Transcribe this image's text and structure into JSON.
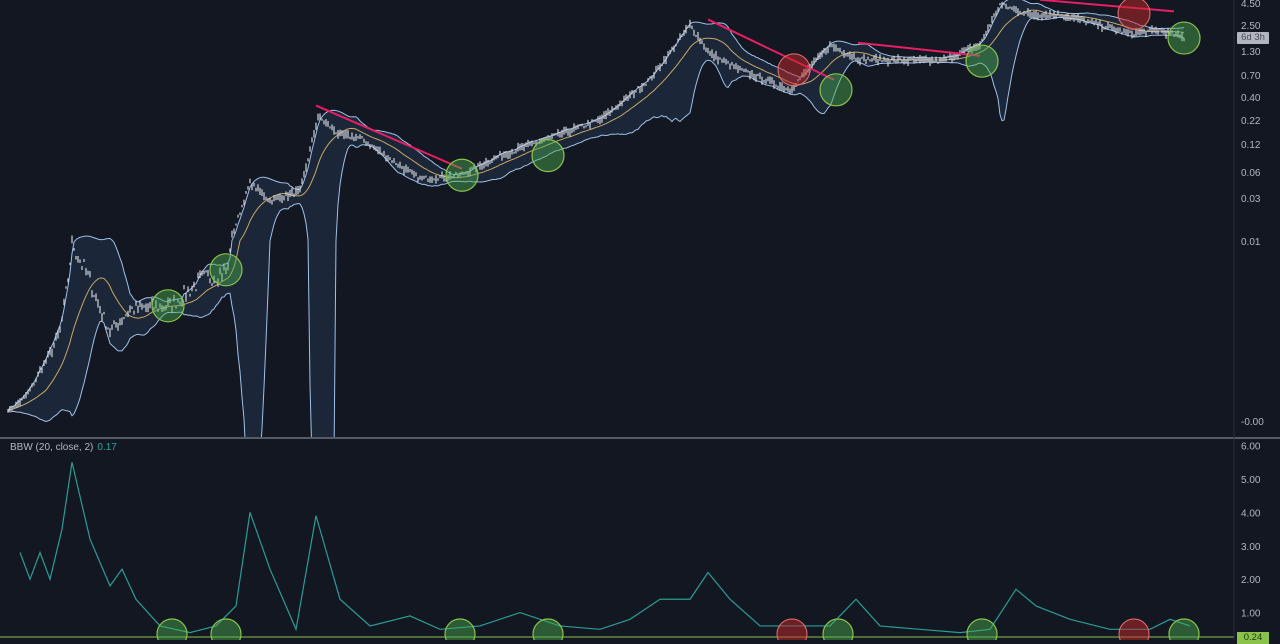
{
  "chart_data": [
    {
      "type": "line",
      "title": "",
      "scale": "custom-log",
      "y_ticks": [
        "4.50",
        "2.50",
        "1.30",
        "0.70",
        "0.40",
        "0.22",
        "0.12",
        "0.06",
        "0.03",
        "0.01",
        "-0.00"
      ],
      "y_tick_values": [
        4.5,
        2.5,
        1.3,
        0.7,
        0.4,
        0.22,
        0.12,
        0.06,
        0.03,
        0.01,
        0
      ],
      "countdown_label": "6d 3h",
      "price": {
        "bar": [
          4,
          20,
          30,
          36,
          45,
          55,
          65,
          85,
          100,
          114,
          125,
          135,
          150,
          159,
          170,
          180,
          200,
          210,
          230,
          250,
          275,
          300,
          325,
          345,
          355,
          370,
          395,
          415,
          430,
          470,
          490,
          500,
          515,
          530,
          550,
          565,
          580,
          592
        ],
        "value": [
          0.0006,
          0.0028,
          0.005,
          0.01,
          0.0078,
          0.005,
          0.0062,
          0.0064,
          0.0078,
          0.0084,
          0.045,
          0.028,
          0.036,
          0.24,
          0.15,
          0.14,
          0.07,
          0.05,
          0.055,
          0.09,
          0.14,
          0.22,
          0.63,
          2.5,
          1.2,
          0.8,
          0.48,
          1.5,
          1.05,
          1.0,
          1.5,
          4.3,
          3.3,
          3.3,
          2.5,
          2.0,
          2.2,
          1.8
        ]
      },
      "signals_green": [
        {
          "bar": 84,
          "value": 0.0064
        },
        {
          "bar": 113,
          "value": 0.0084
        },
        {
          "bar": 231,
          "value": 0.055
        },
        {
          "bar": 274,
          "value": 0.09
        },
        {
          "bar": 418,
          "value": 0.48
        },
        {
          "bar": 491,
          "value": 1.0
        },
        {
          "bar": 592,
          "value": 1.8
        }
      ],
      "signals_red": [
        {
          "bar": 397,
          "value": 0.8
        },
        {
          "bar": 567,
          "value": 3.4
        }
      ],
      "trendlines": [
        {
          "from": {
            "bar": 158,
            "value": 0.32
          },
          "to": {
            "bar": 231,
            "value": 0.065
          }
        },
        {
          "from": {
            "bar": 354,
            "value": 2.9
          },
          "to": {
            "bar": 417,
            "value": 0.62
          }
        },
        {
          "from": {
            "bar": 429,
            "value": 1.6
          },
          "to": {
            "bar": 490,
            "value": 1.15
          }
        },
        {
          "from": {
            "bar": 520,
            "value": 4.9
          },
          "to": {
            "bar": 587,
            "value": 3.6
          }
        }
      ],
      "colors": {
        "price": "#d1d4dc",
        "band": "#9fc0e8",
        "band_fill": "#1b2638",
        "basis": "#c9a764",
        "trend": "#e91e63",
        "green": "#8bc34a",
        "red": "#c62828"
      }
    },
    {
      "type": "line",
      "title": "",
      "indicator_label": "BBW (20, close, 2)",
      "current_value": "0.17",
      "last_value_label": "0.24",
      "y_ticks": [
        "6.00",
        "5.00",
        "4.00",
        "3.00",
        "2.00",
        "1.00"
      ],
      "y_tick_values": [
        6,
        5,
        4,
        3,
        2,
        1
      ],
      "bbw": {
        "bar": [
          10,
          15,
          20,
          25,
          31,
          36,
          45,
          55,
          61,
          68,
          80,
          95,
          108,
          118,
          125,
          135,
          148,
          158,
          170,
          185,
          205,
          220,
          240,
          260,
          280,
          300,
          315,
          330,
          345,
          354,
          365,
          380,
          400,
          415,
          428,
          440,
          460,
          480,
          495,
          508,
          518,
          535,
          555,
          575,
          585,
          595
        ],
        "value": [
          2.8,
          2.0,
          2.8,
          2.0,
          3.5,
          5.5,
          3.2,
          1.8,
          2.3,
          1.4,
          0.6,
          0.4,
          0.6,
          1.2,
          4.0,
          2.3,
          0.5,
          3.9,
          1.4,
          0.6,
          0.9,
          0.5,
          0.6,
          1.0,
          0.6,
          0.5,
          0.8,
          1.4,
          1.4,
          2.2,
          1.4,
          0.6,
          0.6,
          0.6,
          1.4,
          0.6,
          0.5,
          0.4,
          0.5,
          1.7,
          1.2,
          0.8,
          0.5,
          0.5,
          0.8,
          0.6
        ]
      },
      "signals_green_bars": [
        86,
        113,
        230,
        274,
        419,
        491,
        592
      ],
      "signals_red_bars": [
        396,
        567
      ],
      "colors": {
        "line": "#2a9d94",
        "level": "#8bc34a"
      }
    }
  ]
}
